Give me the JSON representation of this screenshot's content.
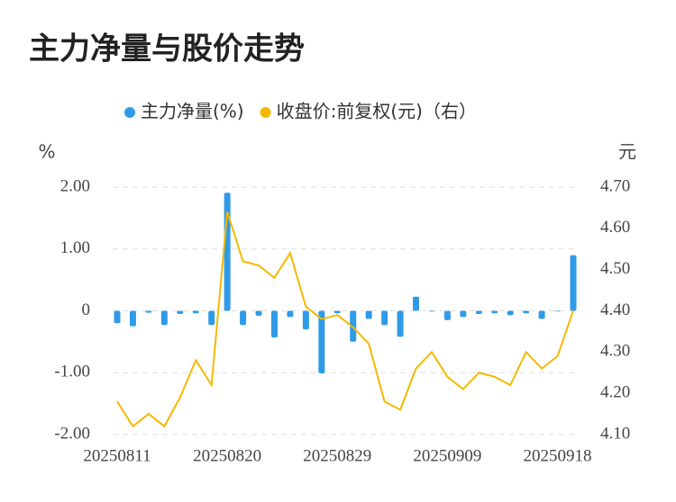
{
  "chart_data": {
    "type": "bar",
    "title": "主力净量与股价走势",
    "y_label": "%",
    "y2_label": "元",
    "categories": [
      "20250811",
      null,
      null,
      null,
      null,
      null,
      null,
      "20250820",
      null,
      null,
      null,
      null,
      null,
      null,
      "20250829",
      null,
      null,
      null,
      null,
      null,
      null,
      "20250909",
      null,
      null,
      null,
      null,
      null,
      null,
      "20250918",
      null
    ],
    "series": [
      {
        "name": "主力净量(%)",
        "type": "bar",
        "color": "#2f9be8",
        "values": [
          -0.2,
          -0.25,
          -0.03,
          -0.23,
          -0.05,
          -0.04,
          -0.23,
          1.91,
          -0.23,
          -0.08,
          -0.43,
          -0.1,
          -0.3,
          -1.01,
          -0.04,
          -0.5,
          -0.13,
          -0.23,
          -0.42,
          0.23,
          -0.01,
          -0.15,
          -0.1,
          -0.05,
          -0.04,
          -0.07,
          -0.04,
          -0.13,
          -0.01,
          0.9
        ]
      },
      {
        "name": "收盘价:前复权(元)（右）",
        "type": "line",
        "axis": "y2",
        "color": "#f5b800",
        "values": [
          4.18,
          4.12,
          4.15,
          4.12,
          4.19,
          4.28,
          4.22,
          4.64,
          4.52,
          4.51,
          4.48,
          4.54,
          4.41,
          4.38,
          4.39,
          4.36,
          4.32,
          4.18,
          4.16,
          4.26,
          4.3,
          4.24,
          4.21,
          4.25,
          4.24,
          4.22,
          4.3,
          4.26,
          4.29,
          4.4
        ]
      }
    ],
    "ylim": [
      -2,
      2
    ],
    "yticks": [
      {
        "value": 2,
        "label": "2.00"
      },
      {
        "value": 1,
        "label": "1.00"
      },
      0,
      {
        "value": -1,
        "label": "-1.00"
      },
      {
        "value": -2,
        "label": "-2.00"
      }
    ],
    "y2lim": [
      4.1,
      4.7
    ],
    "y2ticks": [
      {
        "value": 4.7,
        "label": "4.70"
      },
      {
        "value": 4.6,
        "label": "4.60"
      },
      {
        "value": 4.5,
        "label": "4.50"
      },
      {
        "value": 4.4,
        "label": "4.40"
      },
      {
        "value": 4.3,
        "label": "4.30"
      },
      {
        "value": 4.2,
        "label": "4.20"
      },
      {
        "value": 4.1,
        "label": "4.10"
      }
    ],
    "grid": true
  }
}
